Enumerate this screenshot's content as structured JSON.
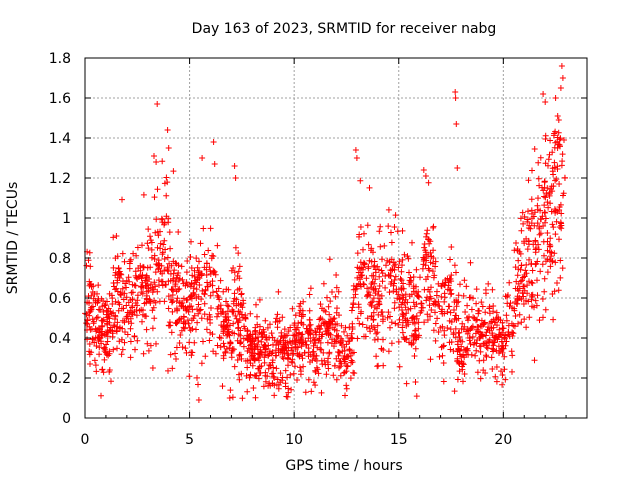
{
  "chart_data": {
    "type": "scatter",
    "title": "Day 163 of 2023, SRMTID for receiver nabg",
    "xlabel": "GPS time / hours",
    "ylabel": "SRMTID / TECUs",
    "xlim": [
      0,
      24
    ],
    "ylim": [
      0,
      1.8
    ],
    "x_ticks": [
      0,
      5,
      10,
      15,
      20
    ],
    "x_tick_labels": [
      "0",
      "5",
      "10",
      "15",
      "20"
    ],
    "y_ticks": [
      0,
      0.2,
      0.4,
      0.6,
      0.8,
      1,
      1.2,
      1.4,
      1.6,
      1.8
    ],
    "y_tick_labels": [
      "0",
      "0.2",
      "0.4",
      "0.6",
      "0.8",
      "1",
      "1.2",
      "1.4",
      "1.6",
      "1.8"
    ],
    "grid": true,
    "marker": "+",
    "marker_color": "#ff0000",
    "series": [
      {
        "name": "SRMTID",
        "trend": [
          [
            0.0,
            0.58,
            0.12
          ],
          [
            0.25,
            0.55,
            0.15
          ],
          [
            0.5,
            0.5,
            0.12
          ],
          [
            0.75,
            0.42,
            0.1
          ],
          [
            1.0,
            0.4,
            0.1
          ],
          [
            1.25,
            0.5,
            0.13
          ],
          [
            1.5,
            0.65,
            0.15
          ],
          [
            1.75,
            0.62,
            0.14
          ],
          [
            2.0,
            0.55,
            0.14
          ],
          [
            2.25,
            0.6,
            0.14
          ],
          [
            2.5,
            0.58,
            0.14
          ],
          [
            2.75,
            0.62,
            0.15
          ],
          [
            3.0,
            0.62,
            0.15
          ],
          [
            3.25,
            0.68,
            0.18
          ],
          [
            3.5,
            0.72,
            0.18
          ],
          [
            3.75,
            0.8,
            0.2
          ],
          [
            4.0,
            0.7,
            0.18
          ],
          [
            4.25,
            0.65,
            0.16
          ],
          [
            4.5,
            0.6,
            0.15
          ],
          [
            4.75,
            0.55,
            0.14
          ],
          [
            5.0,
            0.55,
            0.14
          ],
          [
            5.25,
            0.58,
            0.15
          ],
          [
            5.5,
            0.62,
            0.16
          ],
          [
            5.75,
            0.65,
            0.18
          ],
          [
            6.0,
            0.62,
            0.16
          ],
          [
            6.25,
            0.55,
            0.15
          ],
          [
            6.5,
            0.45,
            0.13
          ],
          [
            6.75,
            0.4,
            0.12
          ],
          [
            7.0,
            0.45,
            0.15
          ],
          [
            7.25,
            0.6,
            0.18
          ],
          [
            7.5,
            0.5,
            0.14
          ],
          [
            7.75,
            0.38,
            0.11
          ],
          [
            8.0,
            0.35,
            0.1
          ],
          [
            8.25,
            0.33,
            0.09
          ],
          [
            8.5,
            0.35,
            0.09
          ],
          [
            8.75,
            0.32,
            0.08
          ],
          [
            9.0,
            0.3,
            0.08
          ],
          [
            9.25,
            0.33,
            0.09
          ],
          [
            9.5,
            0.32,
            0.09
          ],
          [
            9.75,
            0.3,
            0.08
          ],
          [
            10.0,
            0.35,
            0.09
          ],
          [
            10.25,
            0.4,
            0.1
          ],
          [
            10.5,
            0.42,
            0.1
          ],
          [
            10.75,
            0.38,
            0.1
          ],
          [
            11.0,
            0.35,
            0.1
          ],
          [
            11.25,
            0.4,
            0.11
          ],
          [
            11.5,
            0.45,
            0.12
          ],
          [
            11.75,
            0.48,
            0.13
          ],
          [
            12.0,
            0.45,
            0.12
          ],
          [
            12.25,
            0.35,
            0.1
          ],
          [
            12.5,
            0.25,
            0.07
          ],
          [
            12.75,
            0.4,
            0.12
          ],
          [
            13.0,
            0.65,
            0.15
          ],
          [
            13.25,
            0.72,
            0.16
          ],
          [
            13.5,
            0.65,
            0.15
          ],
          [
            13.75,
            0.6,
            0.14
          ],
          [
            14.0,
            0.55,
            0.14
          ],
          [
            14.25,
            0.62,
            0.16
          ],
          [
            14.5,
            0.68,
            0.16
          ],
          [
            14.75,
            0.72,
            0.17
          ],
          [
            15.0,
            0.62,
            0.15
          ],
          [
            15.25,
            0.58,
            0.14
          ],
          [
            15.5,
            0.55,
            0.13
          ],
          [
            15.75,
            0.5,
            0.12
          ],
          [
            16.0,
            0.55,
            0.13
          ],
          [
            16.25,
            0.72,
            0.16
          ],
          [
            16.5,
            0.75,
            0.17
          ],
          [
            16.75,
            0.62,
            0.15
          ],
          [
            17.0,
            0.5,
            0.14
          ],
          [
            17.25,
            0.55,
            0.15
          ],
          [
            17.5,
            0.58,
            0.18
          ],
          [
            17.75,
            0.45,
            0.14
          ],
          [
            18.0,
            0.35,
            0.12
          ],
          [
            18.25,
            0.42,
            0.12
          ],
          [
            18.5,
            0.48,
            0.12
          ],
          [
            18.75,
            0.45,
            0.12
          ],
          [
            19.0,
            0.4,
            0.11
          ],
          [
            19.25,
            0.42,
            0.11
          ],
          [
            19.5,
            0.45,
            0.12
          ],
          [
            19.75,
            0.4,
            0.11
          ],
          [
            20.0,
            0.35,
            0.11
          ],
          [
            20.25,
            0.45,
            0.14
          ],
          [
            20.5,
            0.6,
            0.15
          ],
          [
            20.75,
            0.72,
            0.17
          ],
          [
            21.0,
            0.7,
            0.17
          ],
          [
            21.25,
            0.75,
            0.18
          ],
          [
            21.5,
            0.82,
            0.2
          ],
          [
            21.75,
            0.95,
            0.22
          ],
          [
            22.0,
            1.05,
            0.24
          ],
          [
            22.25,
            0.95,
            0.22
          ],
          [
            22.5,
            1.1,
            0.28
          ],
          [
            22.75,
            1.15,
            0.3
          ]
        ],
        "spikes": [
          [
            3.45,
            1.57
          ],
          [
            3.3,
            1.31
          ],
          [
            3.4,
            1.28
          ],
          [
            3.95,
            1.44
          ],
          [
            4.0,
            1.35
          ],
          [
            5.6,
            1.3
          ],
          [
            6.15,
            1.38
          ],
          [
            6.2,
            1.27
          ],
          [
            7.15,
            1.26
          ],
          [
            7.2,
            1.2
          ],
          [
            12.95,
            1.34
          ],
          [
            13.0,
            1.3
          ],
          [
            16.2,
            1.24
          ],
          [
            16.3,
            1.21
          ],
          [
            17.7,
            1.63
          ],
          [
            17.72,
            1.6
          ],
          [
            17.75,
            1.47
          ],
          [
            17.8,
            1.25
          ],
          [
            21.9,
            1.62
          ],
          [
            22.0,
            1.58
          ],
          [
            22.5,
            1.6
          ],
          [
            22.6,
            1.51
          ],
          [
            22.65,
            1.49
          ],
          [
            22.8,
            1.76
          ],
          [
            22.85,
            1.7
          ],
          [
            22.75,
            1.65
          ],
          [
            22.9,
            1.39
          ],
          [
            22.95,
            1.2
          ]
        ],
        "y_min_observed": 0.09,
        "y_max_observed": 1.76
      }
    ]
  }
}
